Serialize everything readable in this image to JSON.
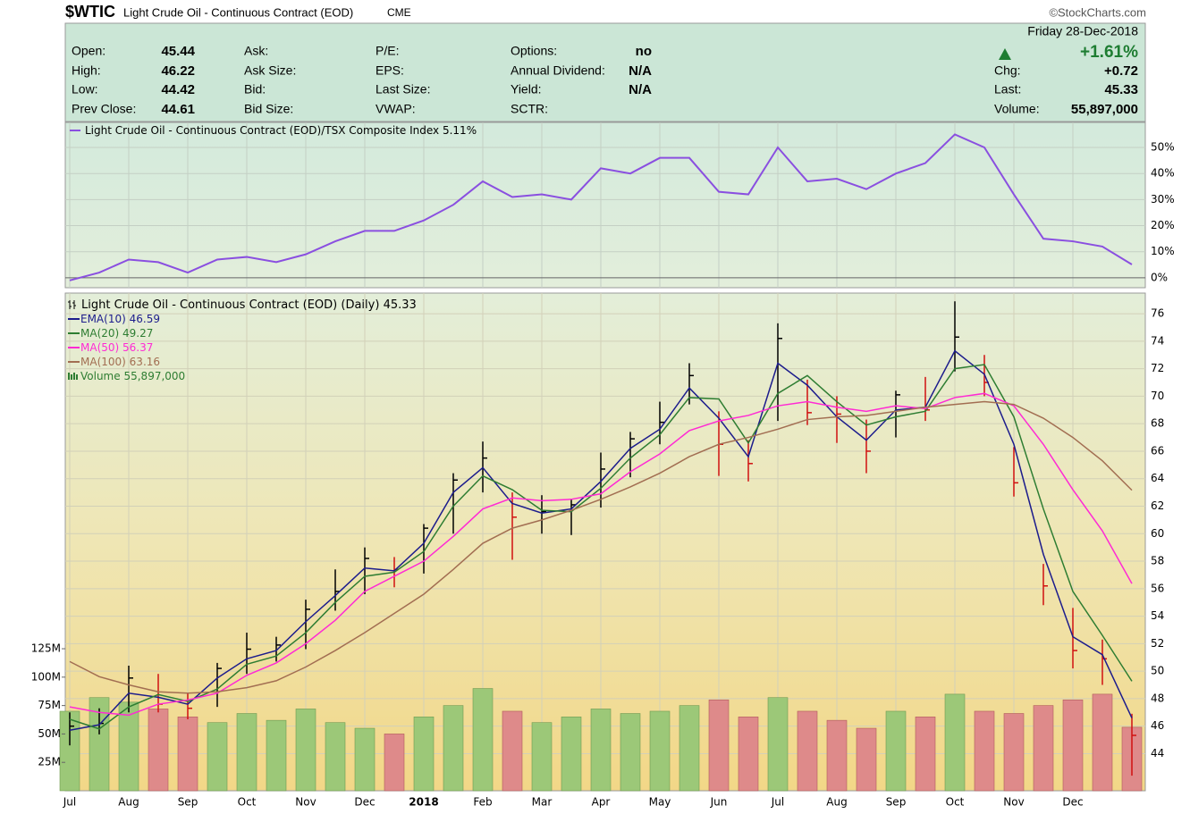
{
  "header": {
    "symbol": "$WTIC",
    "name": "Light Crude Oil - Continuous Contract (EOD)",
    "exchange": "CME",
    "source": "©StockCharts.com",
    "date": "Friday  28-Dec-2018",
    "change": "+1.61%",
    "columns": [
      [
        [
          "Open:",
          "45.44"
        ],
        [
          "High:",
          "46.22"
        ],
        [
          "Low:",
          "44.42"
        ],
        [
          "Prev Close:",
          "44.61"
        ]
      ],
      [
        [
          "Ask:"
        ],
        [
          "Ask Size:"
        ],
        [
          "Bid:"
        ],
        [
          "Bid Size:"
        ]
      ],
      [
        [
          "P/E:"
        ],
        [
          "EPS:"
        ],
        [
          "Last Size:"
        ],
        [
          "VWAP:"
        ]
      ],
      [
        [
          "Options:",
          "no"
        ],
        [
          "Annual Dividend:",
          "N/A"
        ],
        [
          "Yield:",
          "N/A"
        ],
        [
          "SCTR:"
        ]
      ],
      [
        [
          "Chg:",
          "+0.72"
        ],
        [
          "Last:",
          "45.33"
        ],
        [
          "Volume:",
          "55,897,000"
        ]
      ]
    ]
  },
  "chart_data": [
    {
      "type": "line",
      "series": [
        {
          "name": "Light Crude Oil - Continuous Contract (EOD)/TSX Composite Index",
          "color": "#8a4fe0",
          "last": {
            "value": 5.11,
            "label": "5.11%"
          },
          "values": [
            -1,
            2,
            7,
            6,
            2,
            7,
            8,
            6,
            9,
            14,
            18,
            18,
            22,
            28,
            37,
            31,
            32,
            30,
            42,
            40,
            46,
            46,
            33,
            32,
            50,
            37,
            38,
            34,
            40,
            44,
            55,
            50,
            32,
            15,
            14,
            12,
            5.11
          ]
        }
      ],
      "ylim": [
        -3.8,
        59.6
      ],
      "yticks": [
        {
          "value": 0,
          "label": "0%"
        },
        {
          "value": 10,
          "label": "10%"
        },
        {
          "value": 20,
          "label": "20%"
        },
        {
          "value": 30,
          "label": "30%"
        },
        {
          "value": 40,
          "label": "40%"
        },
        {
          "value": 50,
          "label": "50%"
        }
      ],
      "grid": true
    },
    {
      "type": "ohlc",
      "categories": [
        "Jul",
        null,
        "Aug",
        null,
        "Sep",
        null,
        "Oct",
        null,
        "Nov",
        null,
        "Dec",
        null,
        "2018",
        null,
        "Feb",
        null,
        "Mar",
        null,
        "Apr",
        null,
        "May",
        null,
        "Jun",
        null,
        "Jul",
        null,
        "Aug",
        null,
        "Sep",
        null,
        "Oct",
        null,
        "Nov",
        null,
        "Dec",
        null,
        null
      ],
      "price": {
        "name": "Light Crude Oil - Continuous Contract (EOD) (Daily)",
        "last": 45.33,
        "up_color": "#000000",
        "down_color": "#d01010",
        "high": [
          47.0,
          47.3,
          50.4,
          49.8,
          48.4,
          50.6,
          52.8,
          52.5,
          55.2,
          57.4,
          59.0,
          58.3,
          60.7,
          64.4,
          66.7,
          63.0,
          62.8,
          62.5,
          65.9,
          67.4,
          69.6,
          72.4,
          68.9,
          66.8,
          75.3,
          71.2,
          70.0,
          68.3,
          70.4,
          71.4,
          76.9,
          73.0,
          66.3,
          57.8,
          54.6,
          52.3,
          46.9
        ],
        "low": [
          44.6,
          45.4,
          47.0,
          47.0,
          46.5,
          47.4,
          49.8,
          50.7,
          51.6,
          54.4,
          55.6,
          56.1,
          57.1,
          60.0,
          63.0,
          58.1,
          60.0,
          59.9,
          61.9,
          64.1,
          66.5,
          69.4,
          64.2,
          63.8,
          68.2,
          67.9,
          66.6,
          64.4,
          67.0,
          68.2,
          71.8,
          70.0,
          62.7,
          54.8,
          50.2,
          49.0,
          42.4
        ],
        "close": [
          46.0,
          46.2,
          49.5,
          47.6,
          47.3,
          50.2,
          51.6,
          51.9,
          54.5,
          55.8,
          58.2,
          57.4,
          60.4,
          63.9,
          65.5,
          61.2,
          61.6,
          62.1,
          64.7,
          66.9,
          68.1,
          71.5,
          66.5,
          65.1,
          74.2,
          68.8,
          68.7,
          66.0,
          70.1,
          69.0,
          74.3,
          71.0,
          63.7,
          56.2,
          51.5,
          50.9,
          45.33
        ]
      },
      "series": [
        {
          "name": "EMA(10)",
          "color": "#1c1c8c",
          "last": 46.59,
          "values": [
            45.7,
            46.1,
            48.4,
            48.1,
            47.6,
            49.5,
            50.9,
            51.5,
            53.6,
            55.5,
            57.5,
            57.3,
            59.3,
            63.0,
            64.8,
            62.2,
            61.5,
            61.8,
            63.8,
            66.2,
            67.6,
            70.6,
            68.4,
            65.6,
            72.4,
            70.8,
            68.5,
            66.8,
            69.0,
            69.2,
            73.3,
            71.6,
            66.5,
            58.5,
            52.5,
            51.2,
            46.59
          ]
        },
        {
          "name": "MA(20)",
          "color": "#2e7d32",
          "last": 49.27,
          "values": [
            46.5,
            45.8,
            47.4,
            48.3,
            47.8,
            48.7,
            50.5,
            51.1,
            52.8,
            55.0,
            56.9,
            57.2,
            58.7,
            62.0,
            64.2,
            63.2,
            61.7,
            61.6,
            63.3,
            65.5,
            67.2,
            69.9,
            69.8,
            66.6,
            70.2,
            71.5,
            69.6,
            67.9,
            68.5,
            68.9,
            72.0,
            72.3,
            68.5,
            61.8,
            55.8,
            52.6,
            49.27
          ]
        },
        {
          "name": "MA(50)",
          "color": "#ff2ad4",
          "last": 56.37,
          "values": [
            47.4,
            47.0,
            46.8,
            47.6,
            47.9,
            48.4,
            49.7,
            50.6,
            52.0,
            53.7,
            55.8,
            56.9,
            58.0,
            59.8,
            61.8,
            62.6,
            62.4,
            62.5,
            62.9,
            64.5,
            65.8,
            67.5,
            68.2,
            68.6,
            69.3,
            69.6,
            69.2,
            68.9,
            69.3,
            69.1,
            69.9,
            70.2,
            69.3,
            66.5,
            63.2,
            60.2,
            56.37
          ]
        },
        {
          "name": "MA(100)",
          "color": "#a26e52",
          "last": 63.16,
          "values": [
            50.7,
            49.6,
            49.0,
            48.5,
            48.4,
            48.5,
            48.8,
            49.3,
            50.3,
            51.5,
            52.8,
            54.2,
            55.6,
            57.4,
            59.3,
            60.4,
            61.0,
            61.7,
            62.5,
            63.4,
            64.4,
            65.6,
            66.5,
            67.0,
            67.6,
            68.3,
            68.5,
            68.6,
            68.9,
            69.2,
            69.4,
            69.6,
            69.4,
            68.4,
            67.0,
            65.3,
            63.16
          ]
        }
      ],
      "volume": {
        "name": "Volume",
        "axis": "y2",
        "up_color": "#9cc878",
        "down_color": "#de8a8a",
        "legend_color": "#2e7d32",
        "last": {
          "value": 55.897,
          "label": "55,897,000"
        },
        "values": [
          70,
          82,
          78,
          72,
          65,
          60,
          68,
          62,
          72,
          60,
          55,
          50,
          65,
          75,
          90,
          70,
          60,
          65,
          72,
          68,
          70,
          75,
          80,
          65,
          82,
          70,
          62,
          55,
          70,
          65,
          85,
          70,
          68,
          75,
          80,
          85,
          55.897
        ]
      },
      "ylim": [
        41.3,
        77.5
      ],
      "yticks": [
        44,
        46,
        48,
        50,
        52,
        54,
        56,
        58,
        60,
        62,
        64,
        66,
        68,
        70,
        72,
        74,
        76
      ],
      "y2lim": [
        0,
        438
      ],
      "y2ticks": [
        {
          "value": 25,
          "label": "25M"
        },
        {
          "value": 50,
          "label": "50M"
        },
        {
          "value": 75,
          "label": "75M"
        },
        {
          "value": 100,
          "label": "100M"
        },
        {
          "value": 125,
          "label": "125M"
        }
      ],
      "grid": true
    }
  ]
}
